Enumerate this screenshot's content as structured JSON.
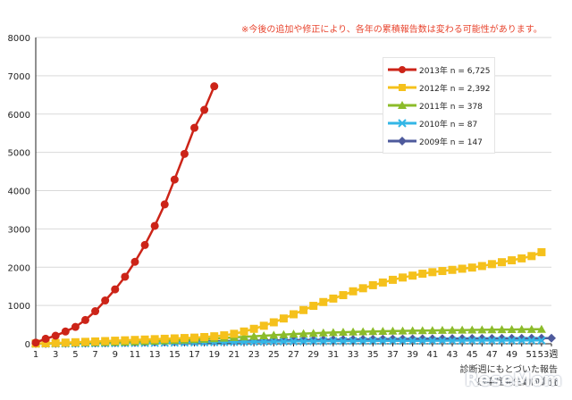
{
  "notice": "※今後の追加や修正により、各年の累積報告数は変わる可能性があります。",
  "source_line1": "診断週にもとづいた報告",
  "source_line2": "感染症発生動向調査",
  "watermark": "ReseMom",
  "colors": {
    "s2013": "#cc2418",
    "s2012": "#f5c11c",
    "s2011": "#8cbc2a",
    "s2010": "#33b6e6",
    "s2009": "#4e5a9c",
    "grid": "#d9d9d9",
    "axis": "#222222"
  },
  "chart_data": {
    "type": "line",
    "ylim": [
      0,
      8000
    ],
    "yticks": [
      "0",
      "1000",
      "2000",
      "3000",
      "4000",
      "5000",
      "6000",
      "7000",
      "8000"
    ],
    "xlim": [
      1,
      53
    ],
    "xtick_labels": [
      "1",
      "3",
      "5",
      "7",
      "9",
      "11",
      "13",
      "15",
      "17",
      "19",
      "21",
      "23",
      "25",
      "27",
      "29",
      "31",
      "33",
      "35",
      "37",
      "39",
      "41",
      "43",
      "45",
      "47",
      "49",
      "51",
      "53週"
    ],
    "grid": "horizontal",
    "legend_position": "top-right",
    "series": [
      {
        "name": "2013年 n = 6,725",
        "color": "#cc2418",
        "marker": "circle",
        "x": [
          1,
          2,
          3,
          4,
          5,
          6,
          7,
          8,
          9,
          10,
          11,
          12,
          13,
          14,
          15,
          16,
          17,
          18,
          19
        ],
        "values": [
          30,
          130,
          210,
          320,
          440,
          620,
          850,
          1130,
          1420,
          1750,
          2140,
          2580,
          3080,
          3640,
          4290,
          4960,
          5640,
          6110,
          6725
        ]
      },
      {
        "name": "2012年 n = 2,392",
        "color": "#f5c11c",
        "marker": "square",
        "x": [
          1,
          2,
          3,
          4,
          5,
          6,
          7,
          8,
          9,
          10,
          11,
          12,
          13,
          14,
          15,
          16,
          17,
          18,
          19,
          20,
          21,
          22,
          23,
          24,
          25,
          26,
          27,
          28,
          29,
          30,
          31,
          32,
          33,
          34,
          35,
          36,
          37,
          38,
          39,
          40,
          41,
          42,
          43,
          44,
          45,
          46,
          47,
          48,
          49,
          50,
          51,
          52
        ],
        "values": [
          5,
          12,
          20,
          30,
          40,
          50,
          60,
          70,
          80,
          90,
          100,
          110,
          120,
          130,
          140,
          150,
          160,
          175,
          195,
          220,
          260,
          320,
          390,
          470,
          560,
          660,
          770,
          880,
          990,
          1090,
          1180,
          1270,
          1370,
          1450,
          1530,
          1600,
          1670,
          1730,
          1780,
          1830,
          1870,
          1900,
          1930,
          1960,
          1990,
          2030,
          2080,
          2130,
          2180,
          2230,
          2290,
          2392
        ]
      },
      {
        "name": "2011年 n = 378",
        "color": "#8cbc2a",
        "marker": "triangle",
        "x": [
          1,
          2,
          3,
          4,
          5,
          6,
          7,
          8,
          9,
          10,
          11,
          12,
          13,
          14,
          15,
          16,
          17,
          18,
          19,
          20,
          21,
          22,
          23,
          24,
          25,
          26,
          27,
          28,
          29,
          30,
          31,
          32,
          33,
          34,
          35,
          36,
          37,
          38,
          39,
          40,
          41,
          42,
          43,
          44,
          45,
          46,
          47,
          48,
          49,
          50,
          51,
          52
        ],
        "values": [
          3,
          6,
          10,
          15,
          20,
          25,
          30,
          35,
          40,
          45,
          52,
          60,
          70,
          80,
          90,
          100,
          110,
          120,
          135,
          150,
          165,
          180,
          195,
          210,
          225,
          240,
          255,
          265,
          275,
          285,
          295,
          302,
          308,
          314,
          320,
          326,
          331,
          336,
          340,
          344,
          348,
          352,
          355,
          358,
          361,
          364,
          367,
          370,
          372,
          375,
          377,
          378
        ]
      },
      {
        "name": "2010年 n = 87",
        "color": "#33b6e6",
        "marker": "x",
        "x": [
          1,
          2,
          3,
          4,
          5,
          6,
          7,
          8,
          9,
          10,
          11,
          12,
          13,
          14,
          15,
          16,
          17,
          18,
          19,
          20,
          21,
          22,
          23,
          24,
          25,
          26,
          27,
          28,
          29,
          30,
          31,
          32,
          33,
          34,
          35,
          36,
          37,
          38,
          39,
          40,
          41,
          42,
          43,
          44,
          45,
          46,
          47,
          48,
          49,
          50,
          51,
          52
        ],
        "values": [
          1,
          2,
          3,
          5,
          6,
          8,
          10,
          12,
          14,
          16,
          18,
          20,
          22,
          24,
          27,
          30,
          33,
          36,
          39,
          42,
          45,
          48,
          51,
          54,
          57,
          59,
          61,
          63,
          65,
          67,
          69,
          70,
          71,
          72,
          73,
          74,
          75,
          76,
          77,
          78,
          79,
          80,
          81,
          82,
          83,
          84,
          84,
          85,
          85,
          86,
          86,
          87
        ]
      },
      {
        "name": "2009年 n = 147",
        "color": "#4e5a9c",
        "marker": "diamond",
        "x": [
          1,
          2,
          3,
          4,
          5,
          6,
          7,
          8,
          9,
          10,
          11,
          12,
          13,
          14,
          15,
          16,
          17,
          18,
          19,
          20,
          21,
          22,
          23,
          24,
          25,
          26,
          27,
          28,
          29,
          30,
          31,
          32,
          33,
          34,
          35,
          36,
          37,
          38,
          39,
          40,
          41,
          42,
          43,
          44,
          45,
          46,
          47,
          48,
          49,
          50,
          51,
          52,
          53
        ],
        "values": [
          2,
          4,
          6,
          9,
          12,
          15,
          18,
          21,
          25,
          29,
          33,
          37,
          41,
          45,
          49,
          53,
          57,
          61,
          65,
          69,
          73,
          77,
          81,
          85,
          89,
          92,
          95,
          98,
          101,
          104,
          107,
          110,
          113,
          116,
          119,
          122,
          124,
          126,
          128,
          130,
          132,
          134,
          136,
          138,
          139,
          140,
          141,
          142,
          143,
          144,
          145,
          146,
          147
        ]
      }
    ]
  }
}
